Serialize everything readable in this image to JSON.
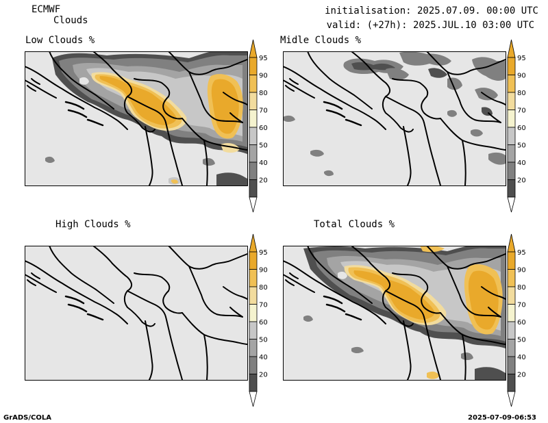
{
  "header": {
    "model": "ECMWF",
    "product": "Clouds",
    "init_line": "initialisation: 2025.07.09. 00:00 UTC",
    "valid_line": "valid: (+27h): 2025.JUL.10 03:00 UTC"
  },
  "panels": [
    {
      "id": "low",
      "title": "Low Clouds %"
    },
    {
      "id": "middle",
      "title": "Midle Clouds %"
    },
    {
      "id": "high",
      "title": "High Clouds %"
    },
    {
      "id": "total",
      "title": "Total Clouds %"
    }
  ],
  "colorbar": {
    "labels": [
      "95",
      "90",
      "80",
      "70",
      "60",
      "50",
      "40",
      "20"
    ],
    "colors": [
      "#e9a92b",
      "#f0c055",
      "#f2dc9e",
      "#f5f3cf",
      "#c7c7c7",
      "#a4a4a4",
      "#808080",
      "#4f4f4f"
    ],
    "background_color": "#e6e6e6"
  },
  "footer": {
    "left": "GrADS/COLA",
    "right": "2025-07-09-06:53"
  }
}
